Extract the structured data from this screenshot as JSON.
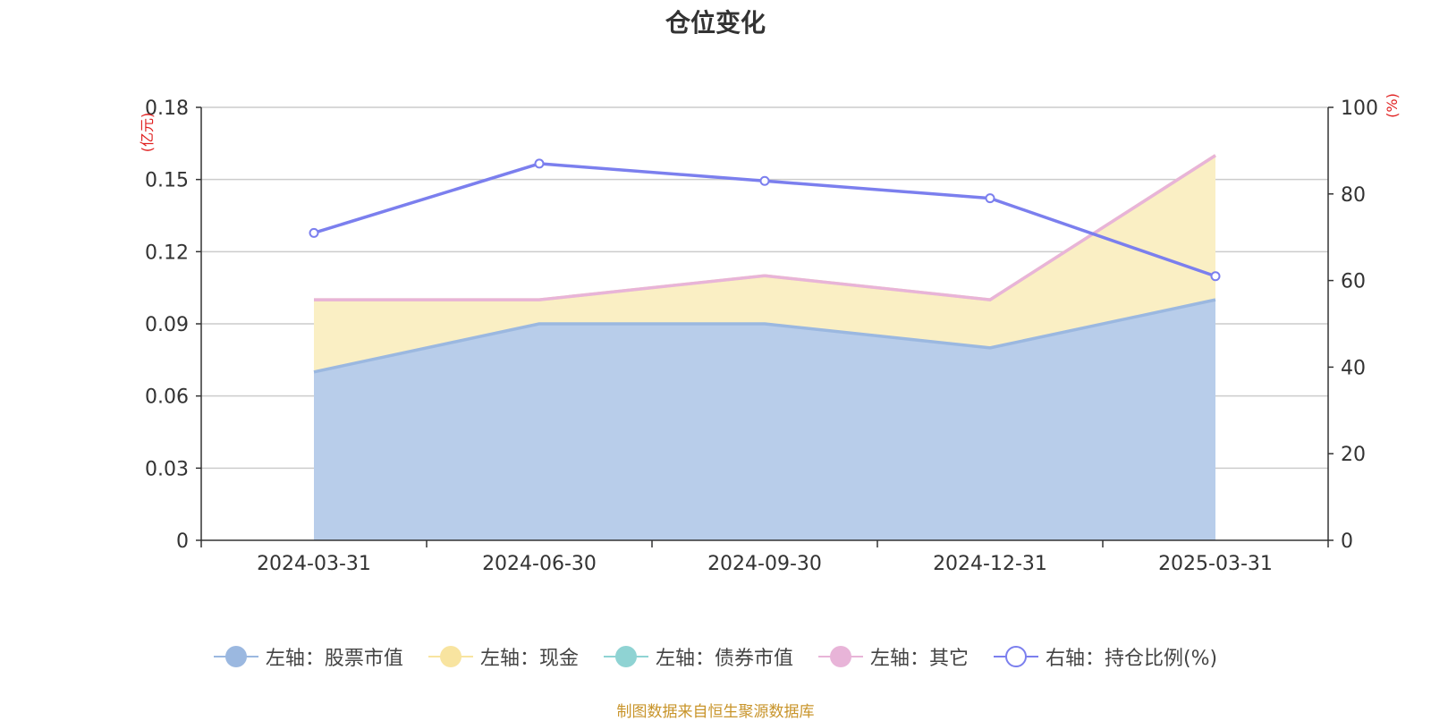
{
  "title": "仓位变化",
  "source_note": "制图数据来自恒生聚源数据库",
  "chart_data": {
    "type": "area",
    "title": "仓位变化",
    "categories": [
      "2024-03-31",
      "2024-06-30",
      "2024-09-30",
      "2024-12-31",
      "2025-03-31"
    ],
    "left_axis": {
      "unit": "(亿元)",
      "ylim": [
        0,
        0.18
      ],
      "ticks": [
        "0",
        "0.03",
        "0.06",
        "0.09",
        "0.12",
        "0.15",
        "0.18"
      ]
    },
    "right_axis": {
      "unit": "(%)",
      "ylim": [
        0,
        100
      ],
      "ticks": [
        "0",
        "20",
        "40",
        "60",
        "80",
        "100"
      ]
    },
    "grid": true,
    "legend_position": "bottom",
    "stacked": true,
    "series": [
      {
        "name": "左轴：股票市值",
        "axis": "left",
        "kind": "area",
        "color": "#9bb8e0",
        "fill": "#b8cdea",
        "values": [
          0.07,
          0.09,
          0.09,
          0.08,
          0.1
        ]
      },
      {
        "name": "左轴：现金",
        "axis": "left",
        "kind": "area",
        "color": "#f8e4a0",
        "fill": "#faefc4",
        "values": [
          0.03,
          0.01,
          0.02,
          0.02,
          0.06
        ]
      },
      {
        "name": "左轴：债券市值",
        "axis": "left",
        "kind": "area",
        "color": "#8fd3d3",
        "fill": "#8fd3d3",
        "values": [
          0,
          0,
          0,
          0,
          0
        ]
      },
      {
        "name": "左轴：其它",
        "axis": "left",
        "kind": "area",
        "color": "#e8b4d8",
        "fill": "#e8b4d8",
        "values": [
          0,
          0,
          0,
          0,
          0
        ]
      },
      {
        "name": "右轴：持仓比例(%)",
        "axis": "right",
        "kind": "line",
        "color": "#7b7fee",
        "values": [
          71,
          87,
          83,
          79,
          61
        ]
      }
    ]
  }
}
